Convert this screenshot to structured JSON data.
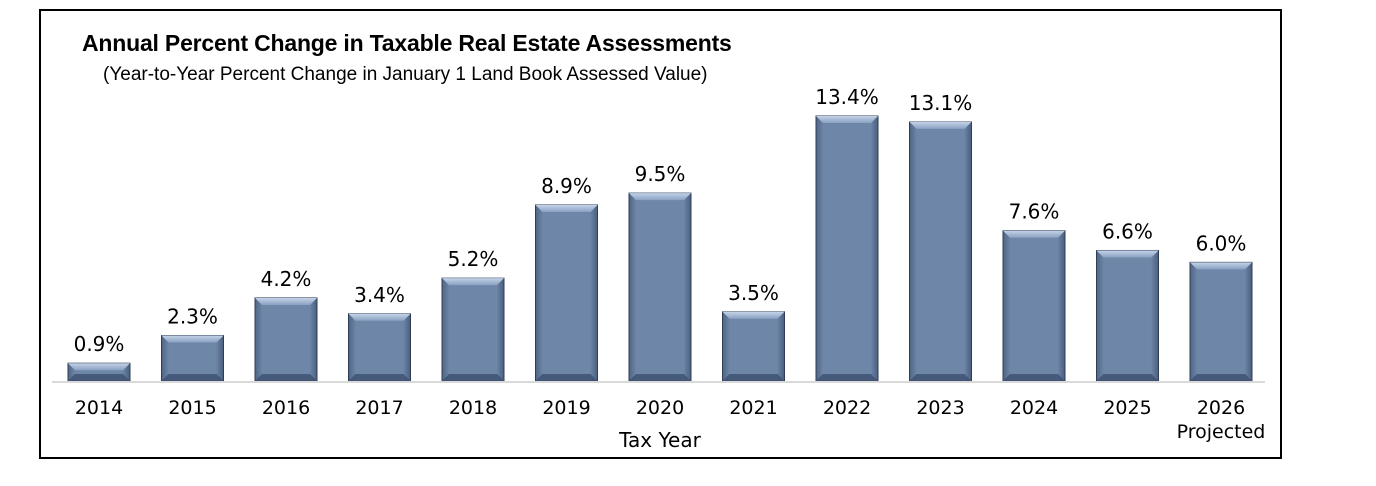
{
  "chart_data": {
    "type": "bar",
    "title": "Annual Percent Change in Taxable Real Estate Assessments",
    "subtitle": "(Year-to-Year Percent Change in January 1 Land Book Assessed Value)",
    "xlabel": "Tax Year",
    "ylabel": "",
    "categories": [
      "2014",
      "2015",
      "2016",
      "2017",
      "2018",
      "2019",
      "2020",
      "2021",
      "2022",
      "2023",
      "2024",
      "2025",
      "2026"
    ],
    "category_sublabels": [
      "",
      "",
      "",
      "",
      "",
      "",
      "",
      "",
      "",
      "",
      "",
      "",
      "Projected"
    ],
    "values": [
      0.9,
      2.3,
      4.2,
      3.4,
      5.2,
      8.9,
      9.5,
      3.5,
      13.4,
      13.1,
      7.6,
      6.6,
      6.0
    ],
    "value_labels": [
      "0.9%",
      "2.3%",
      "4.2%",
      "3.4%",
      "5.2%",
      "8.9%",
      "9.5%",
      "3.5%",
      "13.4%",
      "13.1%",
      "7.6%",
      "6.6%",
      "6.0%"
    ],
    "ylim": [
      0,
      14
    ],
    "grid": false,
    "legend": "none",
    "colors": {
      "bar": "#6e86a8",
      "bar_light": "#a9bdd8",
      "bar_dark": "#4a5f7e",
      "bar_edge": "#2f3e55",
      "axis": "#d9d9d9"
    }
  }
}
